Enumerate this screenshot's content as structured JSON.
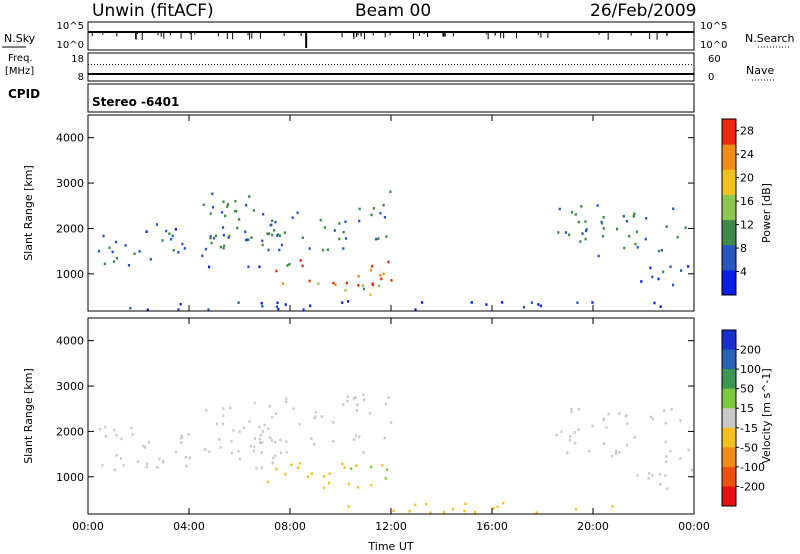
{
  "header": {
    "station": "Unwin (fitACF)",
    "beam": "Beam 00",
    "date": "26/Feb/2009"
  },
  "noise_panel": {
    "left_label": "N.Sky",
    "left_ticks": [
      "10^5",
      "10^0"
    ],
    "right_ticks": [
      "10^5",
      "10^0"
    ],
    "right_label": "N.Search"
  },
  "freq_panel": {
    "left_label_1": "Freq.",
    "left_label_2": "[MHz]",
    "left_ticks": [
      "18",
      "8"
    ],
    "right_ticks": [
      "60",
      "0"
    ],
    "right_label": "Nave",
    "freq_mhz": 10.5,
    "nave": 35
  },
  "cpid": {
    "label": "CPID",
    "value": "Stereo -6401"
  },
  "chart_data": [
    {
      "type": "heatmap",
      "quantity": "power",
      "ylabel": "Slant Range [km]",
      "ylim": [
        180,
        4500
      ],
      "yticks": [
        "1000",
        "2000",
        "3000",
        "4000"
      ],
      "xlabel": "Time UT",
      "xlim_hours": [
        0,
        24
      ],
      "xticks": [
        "00:00",
        "04:00",
        "08:00",
        "12:00",
        "16:00",
        "20:00",
        "00:00"
      ],
      "colorbar": {
        "label": "Power [dB]",
        "ticks": [
          "4",
          "8",
          "12",
          "16",
          "20",
          "24",
          "28"
        ],
        "range": [
          0,
          30
        ],
        "colors": [
          "#0a1ee6",
          "#2a56c0",
          "#3f8a4a",
          "#8cc850",
          "#f2c21c",
          "#f08c18",
          "#ee2810"
        ]
      },
      "echo_regions": [
        {
          "t0": 0.3,
          "t1": 8.0,
          "r0": 1100,
          "r1": 2100,
          "level": 7
        },
        {
          "t0": 4.5,
          "t1": 12.0,
          "r0": 1500,
          "r1": 2800,
          "level": 9
        },
        {
          "t0": 7.0,
          "t1": 12.2,
          "r0": 700,
          "r1": 1300,
          "level": 26
        },
        {
          "t0": 9.0,
          "t1": 11.5,
          "r0": 400,
          "r1": 800,
          "level": 14
        },
        {
          "t0": 18.5,
          "t1": 23.8,
          "r0": 1300,
          "r1": 2500,
          "level": 9
        },
        {
          "t0": 21.5,
          "t1": 24.0,
          "r0": 650,
          "r1": 1200,
          "level": 6
        },
        {
          "t0": 0.0,
          "t1": 24.0,
          "r0": 190,
          "r1": 380,
          "level": 4
        }
      ]
    },
    {
      "type": "heatmap",
      "quantity": "velocity",
      "ylabel": "Slant Range [km]",
      "ylim": [
        180,
        4500
      ],
      "yticks": [
        "1000",
        "2000",
        "3000",
        "4000"
      ],
      "xlabel": "Time UT",
      "xlim_hours": [
        0,
        24
      ],
      "xticks": [
        "00:00",
        "04:00",
        "08:00",
        "12:00",
        "16:00",
        "20:00",
        "00:00"
      ],
      "colorbar": {
        "label": "Velocity [m s^-1]",
        "ticks": [
          "200",
          "100",
          "50",
          "15",
          "-15",
          "-50",
          "-100",
          "-200"
        ],
        "colors": [
          "#1a2fd0",
          "#2a64b4",
          "#3a9650",
          "#7ec840",
          "#c8c8c8",
          "#f4c020",
          "#f08c18",
          "#ee5010",
          "#e61010"
        ]
      },
      "echo_regions": [
        {
          "t0": 0.3,
          "t1": 8.0,
          "r0": 1100,
          "r1": 2100,
          "level": 0
        },
        {
          "t0": 4.5,
          "t1": 12.0,
          "r0": 1500,
          "r1": 2800,
          "level": 0
        },
        {
          "t0": 7.0,
          "t1": 12.2,
          "r0": 700,
          "r1": 1300,
          "level": -40
        },
        {
          "t0": 10.2,
          "t1": 11.8,
          "r0": 850,
          "r1": 1250,
          "level": 30
        },
        {
          "t0": 18.5,
          "t1": 23.8,
          "r0": 1300,
          "r1": 2500,
          "level": 0
        },
        {
          "t0": 21.5,
          "t1": 24.0,
          "r0": 650,
          "r1": 1200,
          "level": 0
        },
        {
          "t0": 9.0,
          "t1": 21.0,
          "r0": 190,
          "r1": 420,
          "level": -30
        }
      ]
    }
  ]
}
